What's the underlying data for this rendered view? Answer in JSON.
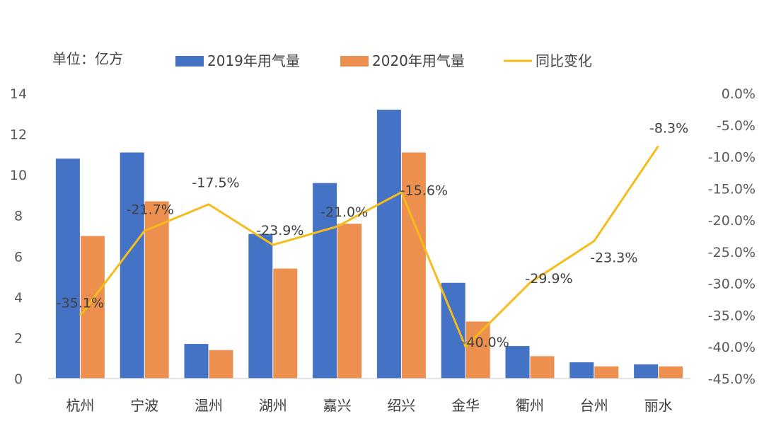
{
  "chart_data": {
    "type": "bar",
    "unit_label": "单位：亿方",
    "categories": [
      "杭州",
      "宁波",
      "温州",
      "湖州",
      "嘉兴",
      "绍兴",
      "金华",
      "衢州",
      "台州",
      "丽水"
    ],
    "series": [
      {
        "name": "2019年用气量",
        "kind": "bar",
        "axis": "left",
        "color": "#4472C4",
        "values": [
          10.8,
          11.1,
          1.7,
          7.1,
          9.6,
          13.2,
          4.7,
          1.6,
          0.8,
          0.7
        ]
      },
      {
        "name": "2020年用气量",
        "kind": "bar",
        "axis": "left",
        "color": "#ED8F4E",
        "values": [
          7.0,
          8.7,
          1.4,
          5.4,
          7.6,
          11.1,
          2.8,
          1.1,
          0.6,
          0.6
        ]
      },
      {
        "name": "同比变化",
        "kind": "line",
        "axis": "right",
        "color": "#F5BC1C",
        "values": [
          -35.1,
          -21.7,
          -17.5,
          -23.9,
          -21.0,
          -15.6,
          -40.0,
          -29.9,
          -23.3,
          -8.3
        ],
        "labels": [
          "-35.1%",
          "-21.7%",
          "-17.5%",
          "-23.9%",
          "-21.0%",
          "-15.6%",
          "-40.0%",
          "-29.9%",
          "-23.3%",
          "-8.3%"
        ]
      }
    ],
    "y_left": {
      "min": 0,
      "max": 14,
      "ticks": [
        "0",
        "2",
        "4",
        "6",
        "8",
        "10",
        "12",
        "14"
      ]
    },
    "y_right": {
      "min": -45,
      "max": 0,
      "ticks": [
        "0.0%",
        "-5.0%",
        "-10.0%",
        "-15.0%",
        "-20.0%",
        "-25.0%",
        "-30.0%",
        "-35.0%",
        "-40.0%",
        "-45.0%"
      ]
    },
    "legend_position": "top",
    "grid": false
  }
}
